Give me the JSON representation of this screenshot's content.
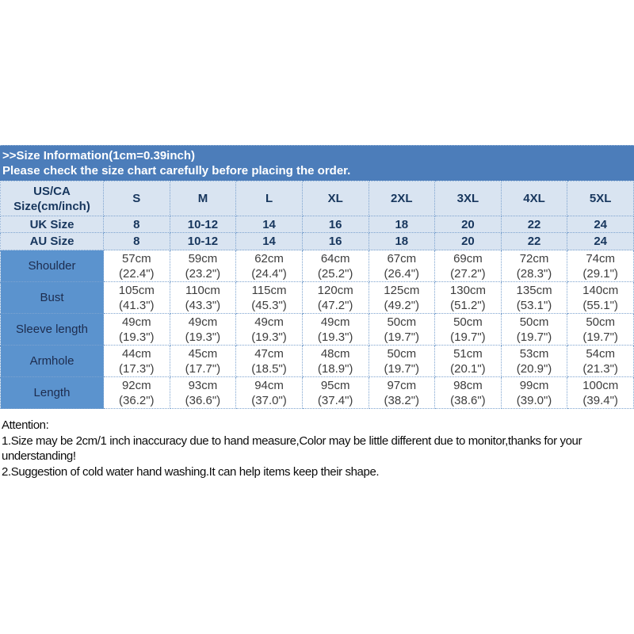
{
  "banner": {
    "line1": ">>Size Information(1cm=0.39inch)",
    "line2": "Please check the size chart carefully before placing the order."
  },
  "table": {
    "corner_header_line1": "US/CA",
    "corner_header_line2": "Size(cm/inch)",
    "sizes": [
      "S",
      "M",
      "L",
      "XL",
      "2XL",
      "3XL",
      "4XL",
      "5XL"
    ],
    "size_rows": [
      {
        "label": "UK Size",
        "values": [
          "8",
          "10-12",
          "14",
          "16",
          "18",
          "20",
          "22",
          "24"
        ]
      },
      {
        "label": "AU Size",
        "values": [
          "8",
          "10-12",
          "14",
          "16",
          "18",
          "20",
          "22",
          "24"
        ]
      }
    ],
    "measure_rows": [
      {
        "label": "Shoulder",
        "values": [
          [
            "57cm",
            "(22.4\")"
          ],
          [
            "59cm",
            "(23.2\")"
          ],
          [
            "62cm",
            "(24.4\")"
          ],
          [
            "64cm",
            "(25.2\")"
          ],
          [
            "67cm",
            "(26.4\")"
          ],
          [
            "69cm",
            "(27.2\")"
          ],
          [
            "72cm",
            "(28.3\")"
          ],
          [
            "74cm",
            "(29.1\")"
          ]
        ]
      },
      {
        "label": "Bust",
        "values": [
          [
            "105cm",
            "(41.3\")"
          ],
          [
            "110cm",
            "(43.3\")"
          ],
          [
            "115cm",
            "(45.3\")"
          ],
          [
            "120cm",
            "(47.2\")"
          ],
          [
            "125cm",
            "(49.2\")"
          ],
          [
            "130cm",
            "(51.2\")"
          ],
          [
            "135cm",
            "(53.1\")"
          ],
          [
            "140cm",
            "(55.1\")"
          ]
        ]
      },
      {
        "label": "Sleeve length",
        "values": [
          [
            "49cm",
            "(19.3\")"
          ],
          [
            "49cm",
            "(19.3\")"
          ],
          [
            "49cm",
            "(19.3\")"
          ],
          [
            "49cm",
            "(19.3\")"
          ],
          [
            "50cm",
            "(19.7\")"
          ],
          [
            "50cm",
            "(19.7\")"
          ],
          [
            "50cm",
            "(19.7\")"
          ],
          [
            "50cm",
            "(19.7\")"
          ]
        ]
      },
      {
        "label": "Armhole",
        "values": [
          [
            "44cm",
            "(17.3\")"
          ],
          [
            "45cm",
            "(17.7\")"
          ],
          [
            "47cm",
            "(18.5\")"
          ],
          [
            "48cm",
            "(18.9\")"
          ],
          [
            "50cm",
            "(19.7\")"
          ],
          [
            "51cm",
            "(20.1\")"
          ],
          [
            "53cm",
            "(20.9\")"
          ],
          [
            "54cm",
            "(21.3\")"
          ]
        ]
      },
      {
        "label": "Length",
        "values": [
          [
            "92cm",
            "(36.2\")"
          ],
          [
            "93cm",
            "(36.6\")"
          ],
          [
            "94cm",
            "(37.0\")"
          ],
          [
            "95cm",
            "(37.4\")"
          ],
          [
            "97cm",
            "(38.2\")"
          ],
          [
            "98cm",
            "(38.6\")"
          ],
          [
            "99cm",
            "(39.0\")"
          ],
          [
            "100cm",
            "(39.4\")"
          ]
        ]
      }
    ]
  },
  "attention": {
    "heading": "Attention:",
    "lines": [
      "1.Size may be 2cm/1 inch inaccuracy due to hand measure,Color may be little different due to monitor,thanks for your understanding!",
      "2.Suggestion of cold water hand washing.It can help items keep their shape."
    ]
  },
  "colors": {
    "banner_blue": "#4c7dba",
    "header_light_blue": "#d9e4f1",
    "label_blue": "#5b93ce",
    "header_text_navy": "#17365d"
  }
}
